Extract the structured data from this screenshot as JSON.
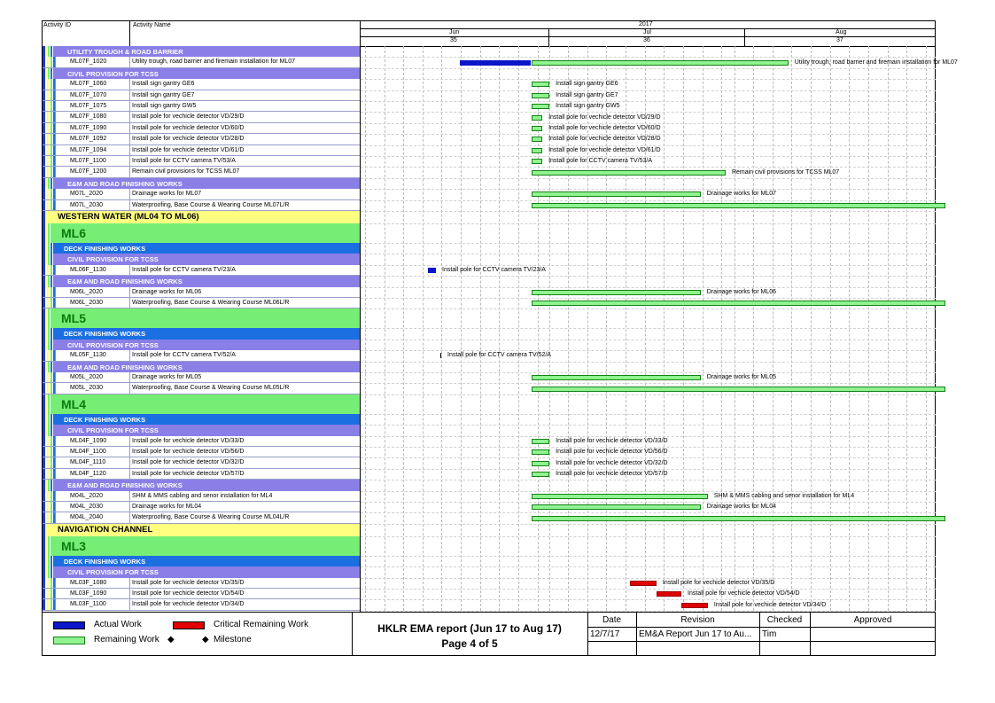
{
  "header": {
    "col_activity_id": "Activity ID",
    "col_activity_name": "Activity Name",
    "year": "2017",
    "months": [
      {
        "name": "Jun",
        "week": "35"
      },
      {
        "name": "Jul",
        "week": "36"
      },
      {
        "name": "Aug",
        "week": "37"
      }
    ]
  },
  "rows": [
    {
      "type": "purple",
      "label": "UTILITY TROUGH & ROAD BARRIER"
    },
    {
      "type": "act",
      "id": "ML07F_1020",
      "name": "Utility trough, road barrier and firemain installation for ML07",
      "bars": [
        {
          "kind": "actual",
          "start": 0,
          "end": 1.0
        },
        {
          "kind": "remaining",
          "start": 1.0,
          "end": 4.6
        }
      ],
      "label": "Utility trough, road barrier and firemain installation for ML07"
    },
    {
      "type": "purple",
      "label": "CIVIL PROVISION FOR TCSS"
    },
    {
      "type": "act",
      "id": "ML07F_1060",
      "name": "Install sign gantry GE6",
      "bars": [
        {
          "kind": "remaining",
          "start": 1.0,
          "end": 1.25
        }
      ],
      "label": "Install sign gantry GE6"
    },
    {
      "type": "act",
      "id": "ML07F_1070",
      "name": "Install sign gantry GE7",
      "bars": [
        {
          "kind": "remaining",
          "start": 1.0,
          "end": 1.25
        }
      ],
      "label": "Install sign gantry GE7"
    },
    {
      "type": "act",
      "id": "ML07F_1075",
      "name": "Install sign gantry GW5",
      "bars": [
        {
          "kind": "remaining",
          "start": 1.0,
          "end": 1.25
        }
      ],
      "label": "Install sign gantry GW5"
    },
    {
      "type": "act",
      "id": "ML07F_1080",
      "name": "Install pole for vechicle detector VD/29/D",
      "bars": [
        {
          "kind": "remaining",
          "start": 1.0,
          "end": 1.15
        }
      ],
      "label": "Install pole for vechicle detector VD/29/D"
    },
    {
      "type": "act",
      "id": "ML07F_1090",
      "name": "Install pole for vechicle detector VD/60/D",
      "bars": [
        {
          "kind": "remaining",
          "start": 1.0,
          "end": 1.15
        }
      ],
      "label": "Install pole for vechicle detector VD/60/D"
    },
    {
      "type": "act",
      "id": "ML07F_1092",
      "name": "Install pole for vechicle detector VD/28/D",
      "bars": [
        {
          "kind": "remaining",
          "start": 1.0,
          "end": 1.15
        }
      ],
      "label": "Install pole for vechicle detector VD/28/D"
    },
    {
      "type": "act",
      "id": "ML07F_1094",
      "name": "Install pole for vechicle detector VD/61/D",
      "bars": [
        {
          "kind": "remaining",
          "start": 1.0,
          "end": 1.15
        }
      ],
      "label": "Install pole for vechicle detector VD/61/D"
    },
    {
      "type": "act",
      "id": "ML07F_1100",
      "name": "Install pole for CCTV camera TV/53/A",
      "bars": [
        {
          "kind": "remaining",
          "start": 1.0,
          "end": 1.15
        }
      ],
      "label": "Install pole for CCTV camera TV/53/A"
    },
    {
      "type": "act",
      "id": "ML07F_1200",
      "name": "Remain civil provisions for TCSS ML07",
      "bars": [
        {
          "kind": "remaining",
          "start": 1.0,
          "end": 3.72
        }
      ],
      "label": "Remain civil provisions for TCSS ML07"
    },
    {
      "type": "purple",
      "label": "E&M AND ROAD FINISHING WORKS"
    },
    {
      "type": "act",
      "id": "M07L_2020",
      "name": "Drainage works for ML07",
      "bars": [
        {
          "kind": "remaining",
          "start": 1.0,
          "end": 3.37
        }
      ],
      "label": "Drainage works for ML07"
    },
    {
      "type": "act",
      "id": "M07L_2030",
      "name": "Waterproofing, Base Course & Wearing Course ML07L/R",
      "bars": [
        {
          "kind": "remaining",
          "start": 1.0,
          "end": 9.0
        }
      ],
      "label": ""
    },
    {
      "type": "yellow",
      "label": "WESTERN WATER (ML04 TO ML06)"
    },
    {
      "type": "green",
      "label": "ML6"
    },
    {
      "type": "blue",
      "label": "DECK FINISHING WORKS"
    },
    {
      "type": "purple",
      "label": "CIVIL PROVISION FOR TCSS"
    },
    {
      "type": "act",
      "id": "ML06F_1130",
      "name": "Install pole for CCTV camera TV/23/A",
      "bars": [
        {
          "kind": "actual",
          "start": -0.2,
          "end": -0.1
        }
      ],
      "label": "Install pole for CCTV camera TV/23/A"
    },
    {
      "type": "purple",
      "label": "E&M AND ROAD FINISHING WORKS"
    },
    {
      "type": "act",
      "id": "M06L_2020",
      "name": "Drainage works for ML06",
      "bars": [
        {
          "kind": "remaining",
          "start": 1.0,
          "end": 3.37
        }
      ],
      "label": "Drainage works for ML06"
    },
    {
      "type": "act",
      "id": "M06L_2030",
      "name": "Waterproofing, Base Course & Wearing Course ML06L/R",
      "bars": [
        {
          "kind": "remaining",
          "start": 1.0,
          "end": 9.0
        }
      ],
      "label": ""
    },
    {
      "type": "green",
      "label": "ML5"
    },
    {
      "type": "blue",
      "label": "DECK FINISHING WORKS"
    },
    {
      "type": "purple",
      "label": "CIVIL PROVISION FOR TCSS"
    },
    {
      "type": "act",
      "id": "ML05F_1130",
      "name": "Install pole for CCTV camera TV/52/A",
      "bars": [
        {
          "kind": "tick",
          "start": -0.1,
          "end": -0.09
        }
      ],
      "label": "Install pole for CCTV camera TV/52/A"
    },
    {
      "type": "purple",
      "label": "E&M AND ROAD FINISHING WORKS"
    },
    {
      "type": "act",
      "id": "M05L_2020",
      "name": "Drainage works for ML05",
      "bars": [
        {
          "kind": "remaining",
          "start": 1.0,
          "end": 3.37
        }
      ],
      "label": "Drainage works for ML05"
    },
    {
      "type": "act",
      "id": "M05L_2030",
      "name": "Waterproofing, Base Course & Wearing Course ML05L/R",
      "bars": [
        {
          "kind": "remaining",
          "start": 1.0,
          "end": 9.0
        }
      ],
      "label": ""
    },
    {
      "type": "green",
      "label": "ML4"
    },
    {
      "type": "blue",
      "label": "DECK FINISHING WORKS"
    },
    {
      "type": "purple",
      "label": "CIVIL PROVISION FOR TCSS"
    },
    {
      "type": "act",
      "id": "ML04F_1090",
      "name": "Install pole for vechicle detector VD/33/D",
      "bars": [
        {
          "kind": "remaining",
          "start": 1.0,
          "end": 1.25
        }
      ],
      "label": "Install pole for vechicle detector VD/33/D"
    },
    {
      "type": "act",
      "id": "ML04F_1100",
      "name": "Install pole for vechicle detector VD/56/D",
      "bars": [
        {
          "kind": "remaining",
          "start": 1.0,
          "end": 1.25
        }
      ],
      "label": "Install pole for vechicle detector VD/56/D"
    },
    {
      "type": "act",
      "id": "ML04F_1110",
      "name": "Install pole for vechicle detector VD/32/D",
      "bars": [
        {
          "kind": "remaining",
          "start": 1.0,
          "end": 1.25
        }
      ],
      "label": "Install pole for vechicle detector VD/32/D"
    },
    {
      "type": "act",
      "id": "ML04F_1120",
      "name": "Install pole for vechicle detector VD/57/D",
      "bars": [
        {
          "kind": "remaining",
          "start": 1.0,
          "end": 1.25
        }
      ],
      "label": "Install pole for vechicle detector VD/57/D"
    },
    {
      "type": "purple",
      "label": "E&M AND ROAD FINISHING WORKS"
    },
    {
      "type": "act",
      "id": "M04L_2020",
      "name": "SHM & MMS cabling and senor installation for ML4",
      "bars": [
        {
          "kind": "remaining",
          "start": 1.0,
          "end": 3.47
        }
      ],
      "label": "SHM & MMS cabling and senor installation for ML4"
    },
    {
      "type": "act",
      "id": "M04L_2030",
      "name": "Drainage works for ML04",
      "bars": [
        {
          "kind": "remaining",
          "start": 1.0,
          "end": 3.37
        }
      ],
      "label": "Drainage works for ML04"
    },
    {
      "type": "act",
      "id": "M04L_2040",
      "name": "Waterproofing, Base Course & Wearing Course ML04L/R",
      "bars": [
        {
          "kind": "remaining",
          "start": 1.0,
          "end": 9.0
        }
      ],
      "label": ""
    },
    {
      "type": "yellow",
      "label": "NAVIGATION CHANNEL"
    },
    {
      "type": "green",
      "label": "ML3"
    },
    {
      "type": "blue",
      "label": "DECK FINISHING WORKS"
    },
    {
      "type": "purple",
      "label": "CIVIL PROVISION FOR TCSS"
    },
    {
      "type": "act",
      "id": "ML03F_1080",
      "name": "Install pole for vechicle detector VD/35/D",
      "bars": [
        {
          "kind": "critical",
          "start": 2.38,
          "end": 2.75
        }
      ],
      "label": "Install pole for vechicle detector VD/35/D"
    },
    {
      "type": "act",
      "id": "ML03F_1090",
      "name": "Install pole for vechicle detector VD/54/D",
      "bars": [
        {
          "kind": "critical",
          "start": 2.75,
          "end": 3.1
        }
      ],
      "label": "Install pole for vechicle detector VD/54/D"
    },
    {
      "type": "act",
      "id": "ML03F_1100",
      "name": "Install pole for vechicle detector VD/34/D",
      "bars": [
        {
          "kind": "critical",
          "start": 3.1,
          "end": 3.47
        }
      ],
      "label": "Install pole for vechicle detector VD/34/D"
    }
  ],
  "legend": {
    "actual": "Actual Work",
    "critical": "Critical Remaining Work",
    "remaining": "Remaining Work",
    "milestone": "Milestone"
  },
  "footer": {
    "title": "HKLR EMA report (Jun 17 to Aug 17)",
    "page": "Page 4 of 5",
    "col_date": "Date",
    "col_revision": "Revision",
    "col_checked": "Checked",
    "col_approved": "Approved",
    "date_value": "12/7/17",
    "revision_value": "EM&A Report Jun 17 to Au...",
    "checked_value": "Tim",
    "approved_value": ""
  },
  "colors": {
    "actual": "#0b16c9",
    "remaining": "#8ff38f",
    "critical": "#e00000",
    "group_purple": "#8a7fe6",
    "group_blue": "#1b6fe0",
    "group_yellow": "#ffff80",
    "group_green": "#76ee76"
  }
}
